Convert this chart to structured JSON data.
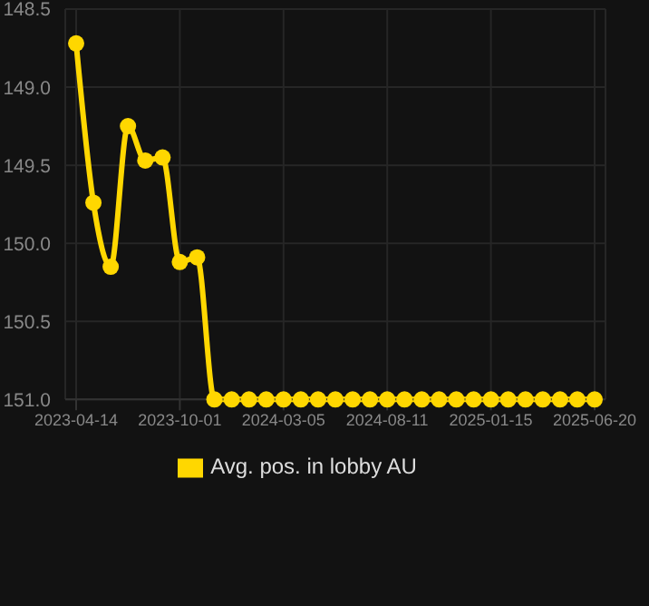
{
  "chart_data": {
    "type": "line",
    "categories": [
      "2023-04-14",
      null,
      null,
      null,
      null,
      null,
      "2023-10-01",
      null,
      null,
      null,
      null,
      null,
      "2024-03-05",
      null,
      null,
      null,
      null,
      null,
      "2024-08-11",
      null,
      null,
      null,
      null,
      null,
      "2025-01-15",
      null,
      null,
      null,
      null,
      null,
      "2025-06-20"
    ],
    "series": [
      {
        "name": "Avg. pos. in lobby AU",
        "color": "#ffd700",
        "values": [
          148.72,
          149.74,
          150.15,
          149.25,
          149.47,
          149.45,
          150.12,
          150.09,
          151.0,
          151.0,
          151.0,
          151.0,
          151.0,
          151.0,
          151.0,
          151.0,
          151.0,
          151.0,
          151.0,
          151.0,
          151.0,
          151.0,
          151.0,
          151.0,
          151.0,
          151.0,
          151.0,
          151.0,
          151.0,
          151.0,
          151.0
        ]
      }
    ],
    "ylim": [
      151.0,
      148.5
    ],
    "yticks": [
      {
        "value": 148.5,
        "label": "148.5"
      },
      {
        "value": 149.0,
        "label": "149.0"
      },
      {
        "value": 149.5,
        "label": "149.5"
      },
      {
        "value": 150.0,
        "label": "150.0"
      },
      {
        "value": 150.5,
        "label": "150.5"
      },
      {
        "value": 151.0,
        "label": "151.0"
      }
    ],
    "grid": true,
    "legend": "bottom",
    "marker": "circle",
    "line_style": "solid"
  }
}
